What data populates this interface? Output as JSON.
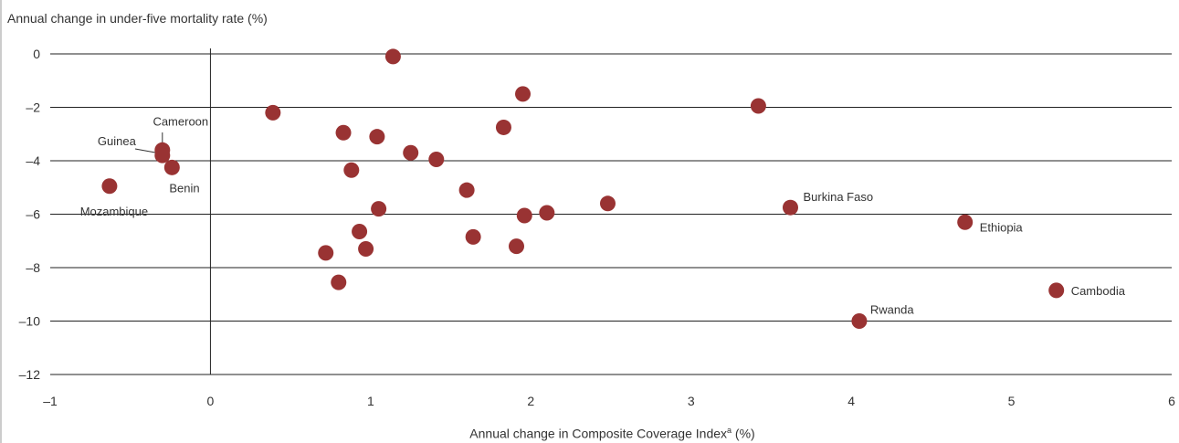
{
  "chart_data": {
    "type": "scatter",
    "title": "",
    "ylabel": "Annual change in under-five mortality rate (%)",
    "xlabel_main": "Annual change in Composite Coverage Index",
    "xlabel_super": "a",
    "xlabel_unit": " (%)",
    "xlim": [
      -1,
      6
    ],
    "ylim": [
      -12,
      0
    ],
    "xticks": [
      "–1",
      "0",
      "1",
      "2",
      "3",
      "4",
      "5",
      "6"
    ],
    "yticks": [
      "0",
      "–2",
      "–4",
      "–6",
      "–8",
      "–10",
      "–12"
    ],
    "grid": "horizontal",
    "marker_color": "#993333",
    "points": [
      {
        "x": 1.14,
        "y": -0.1,
        "label": ""
      },
      {
        "x": 1.95,
        "y": -1.5,
        "label": ""
      },
      {
        "x": 3.42,
        "y": -1.95,
        "label": ""
      },
      {
        "x": 0.39,
        "y": -2.2,
        "label": ""
      },
      {
        "x": 1.83,
        "y": -2.75,
        "label": ""
      },
      {
        "x": 0.83,
        "y": -2.95,
        "label": ""
      },
      {
        "x": 1.04,
        "y": -3.1,
        "label": ""
      },
      {
        "x": 1.25,
        "y": -3.7,
        "label": ""
      },
      {
        "x": 1.41,
        "y": -3.95,
        "label": ""
      },
      {
        "x": 0.88,
        "y": -4.35,
        "label": ""
      },
      {
        "x": 1.6,
        "y": -5.1,
        "label": ""
      },
      {
        "x": 2.48,
        "y": -5.6,
        "label": ""
      },
      {
        "x": 1.05,
        "y": -5.8,
        "label": ""
      },
      {
        "x": 2.1,
        "y": -5.95,
        "label": ""
      },
      {
        "x": 1.96,
        "y": -6.05,
        "label": ""
      },
      {
        "x": 0.93,
        "y": -6.65,
        "label": ""
      },
      {
        "x": 1.64,
        "y": -6.85,
        "label": ""
      },
      {
        "x": 1.91,
        "y": -7.2,
        "label": ""
      },
      {
        "x": 0.97,
        "y": -7.3,
        "label": ""
      },
      {
        "x": 0.72,
        "y": -7.45,
        "label": ""
      },
      {
        "x": 0.8,
        "y": -8.55,
        "label": ""
      },
      {
        "x": -0.3,
        "y": -3.6,
        "label": "Cameroon"
      },
      {
        "x": -0.3,
        "y": -3.8,
        "label": "Guinea"
      },
      {
        "x": -0.24,
        "y": -4.25,
        "label": "Benin"
      },
      {
        "x": -0.63,
        "y": -4.95,
        "label": "Mozambique"
      },
      {
        "x": 3.62,
        "y": -5.75,
        "label": "Burkina Faso"
      },
      {
        "x": 4.71,
        "y": -6.3,
        "label": "Ethiopia"
      },
      {
        "x": 5.28,
        "y": -8.85,
        "label": "Cambodia"
      },
      {
        "x": 4.05,
        "y": -10.0,
        "label": "Rwanda"
      }
    ]
  }
}
